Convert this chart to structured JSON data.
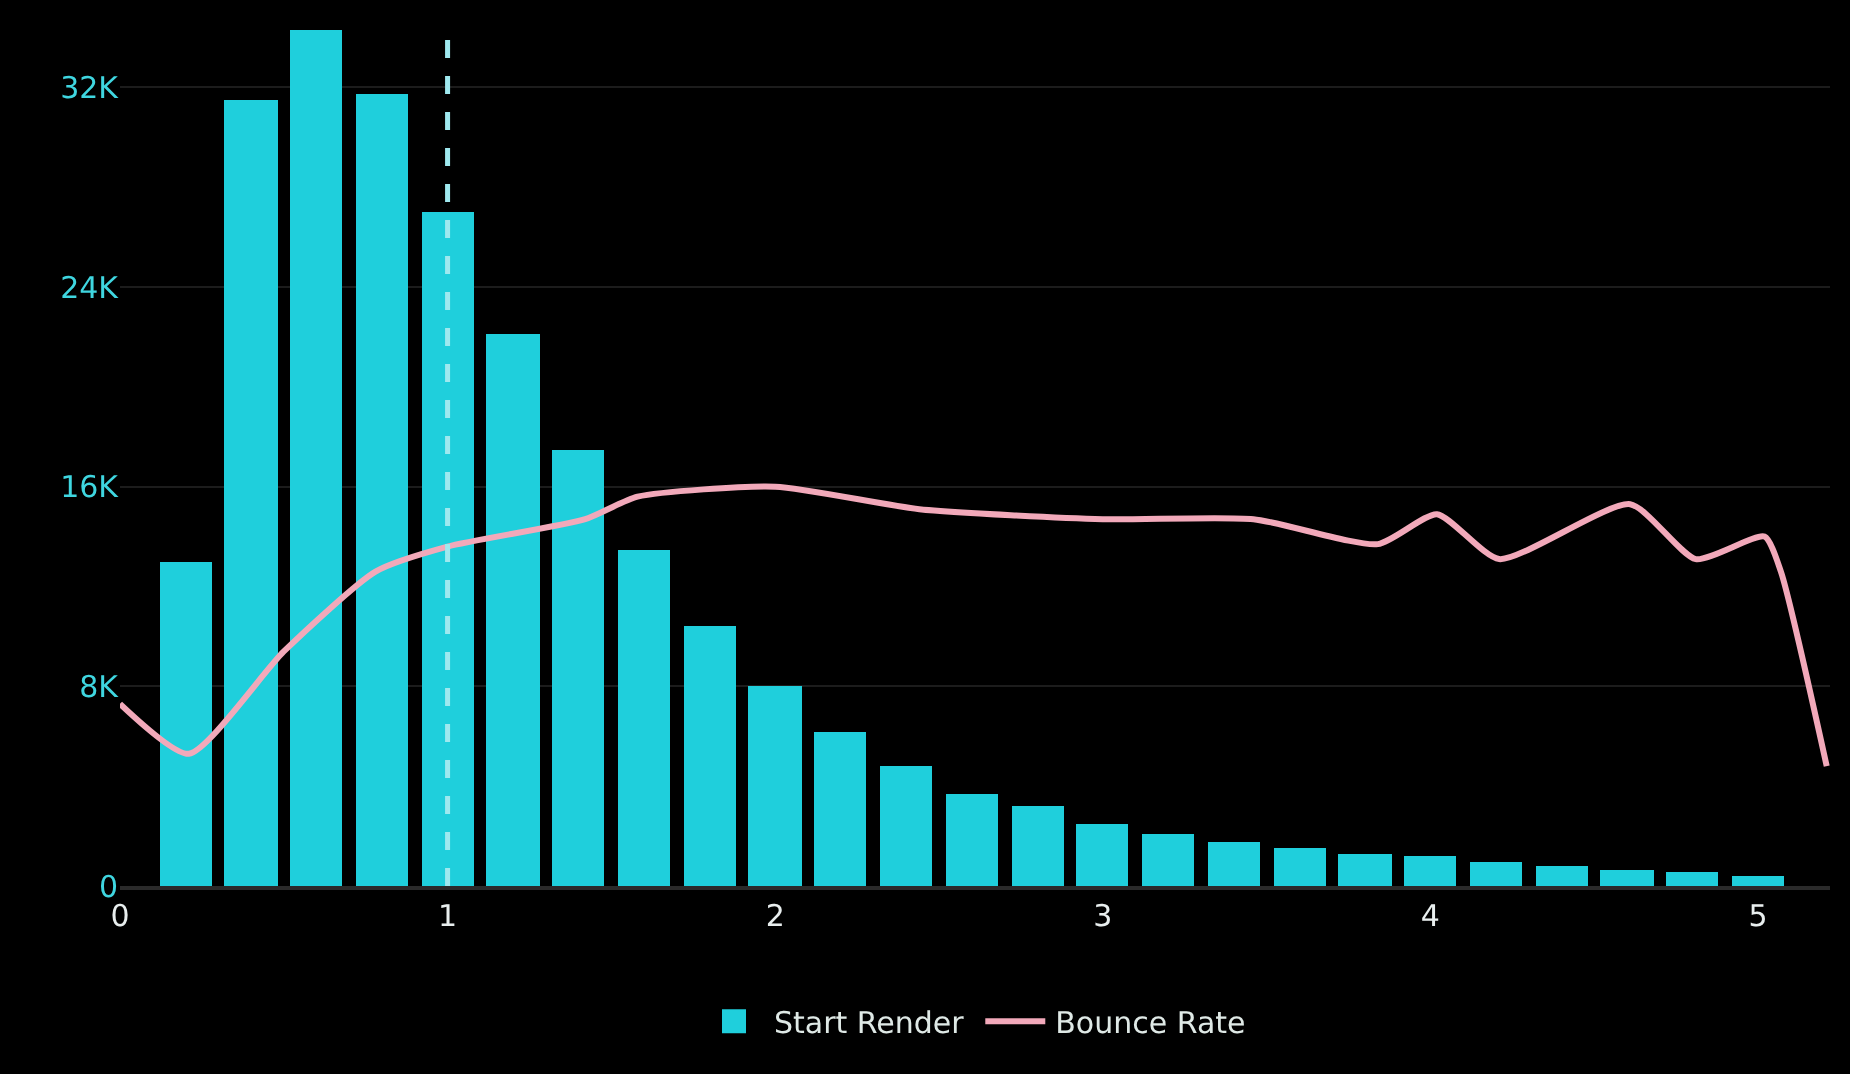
{
  "chart_data": {
    "type": "histogram",
    "bins": [
      0.1,
      0.3,
      0.5,
      0.7,
      0.9,
      1.1,
      1.3,
      1.5,
      1.7,
      1.9,
      2.1,
      2.3,
      2.5,
      2.7,
      2.9,
      3.1,
      3.3,
      3.5,
      3.7,
      3.9,
      4.1,
      4.3,
      4.5,
      4.7,
      4.9,
      5.1
    ],
    "series": [
      {
        "name": "Start Render",
        "color": "#1fcfdc",
        "values": [
          13000,
          31500,
          34300,
          31700,
          27000,
          22100,
          17500,
          13500,
          10400,
          8000,
          6200,
          4800,
          3700,
          3200,
          2500,
          2050,
          1750,
          1500,
          1300,
          1200,
          950,
          800,
          650,
          550,
          400
        ]
      },
      {
        "name": "Bounce Rate",
        "type": "line",
        "color": "#f2a9ba",
        "x": [
          0,
          0.21,
          0.5,
          0.78,
          1.0,
          1.42,
          1.58,
          2.0,
          2.44,
          3.0,
          3.46,
          3.84,
          4.02,
          4.21,
          4.61,
          4.81,
          5.02,
          5.07,
          5.21
        ],
        "values": [
          7300,
          5300,
          9400,
          12600,
          13600,
          14700,
          15600,
          16000,
          15100,
          14700,
          14700,
          13700,
          14900,
          13100,
          15300,
          13100,
          14000,
          12600,
          4800
        ]
      }
    ],
    "xlim": [
      0,
      5.22
    ],
    "xticks": [
      0,
      1,
      2,
      3,
      4,
      5
    ],
    "ylim": [
      0,
      34300
    ],
    "yticks": [
      {
        "value": 0,
        "label": "0"
      },
      {
        "value": 8000,
        "label": "8K"
      },
      {
        "value": 16000,
        "label": "16K"
      },
      {
        "value": 24000,
        "label": "24K"
      },
      {
        "value": 32000,
        "label": "32K"
      }
    ],
    "ref_lines": [
      {
        "axis": "x",
        "value": 1,
        "color": "#9fe9ef",
        "line_style": "dashed"
      }
    ],
    "grid": "y",
    "legend": "bottom"
  }
}
